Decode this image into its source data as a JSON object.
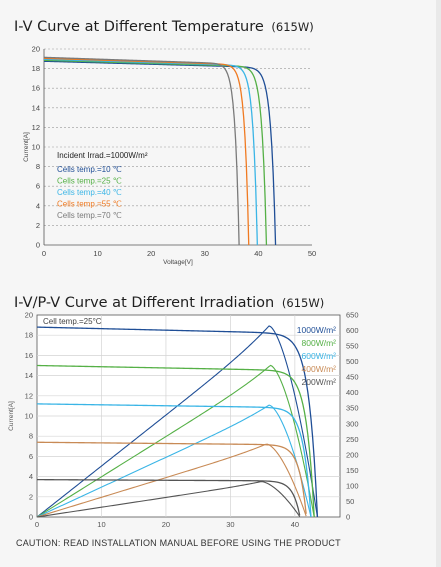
{
  "titles": {
    "chart1_main": "I-V Curve at Different Temperature",
    "chart1_sub": "(615W)",
    "chart2_main": "I-V/P-V Curve at Different Irradiation",
    "chart2_sub": "(615W)"
  },
  "caution": "CAUTION: READ INSTALLATION MANUAL BEFORE USING THE PRODUCT",
  "colors": {
    "grid": "#9a9a9a",
    "axis": "#555555",
    "ref": "#444444"
  },
  "chart_data": [
    {
      "type": "line",
      "title": "I-V Curve at Different Temperature (615W)",
      "xlabel": "Voltage[V]",
      "ylabel": "Current[A]",
      "xlim": [
        0,
        50
      ],
      "ylim": [
        0,
        20
      ],
      "xticks": [
        0,
        10,
        20,
        30,
        40,
        50
      ],
      "yticks": [
        0,
        2,
        4,
        6,
        8,
        10,
        12,
        14,
        16,
        18,
        20
      ],
      "grid": "horizontal dashed",
      "annotations": [
        "Incident Irrad.=1000W/m²"
      ],
      "legend_position": "left-middle",
      "series": [
        {
          "name": "Cells temp.=10 ℃",
          "color": "#1f4e96",
          "isc": 18.75,
          "voc": 43.2,
          "knee": 37.6
        },
        {
          "name": "Cells temp.=25 ℃",
          "color": "#55b046",
          "isc": 18.85,
          "voc": 41.5,
          "knee": 36.2
        },
        {
          "name": "Cells temp.=40 ℃",
          "color": "#3ab5e6",
          "isc": 18.95,
          "voc": 39.8,
          "knee": 34.7
        },
        {
          "name": "Cells temp.=55 ℃",
          "color": "#f07a21",
          "isc": 19.05,
          "voc": 38.2,
          "knee": 33.2
        },
        {
          "name": "Cells temp.=70 ℃",
          "color": "#7a7a7a",
          "isc": 19.15,
          "voc": 36.4,
          "knee": 31.5
        }
      ]
    },
    {
      "type": "line",
      "title": "I-V/P-V Curve at Different Irradiation (615W)",
      "xlabel": "",
      "ylabel": "Current[A]",
      "y2label": "",
      "xlim": [
        0,
        47
      ],
      "ylim": [
        0,
        20
      ],
      "y2lim": [
        0,
        650
      ],
      "xticks": [
        0,
        10,
        20,
        30,
        40
      ],
      "yticks": [
        0,
        2,
        4,
        6,
        8,
        10,
        12,
        14,
        16,
        18,
        20
      ],
      "y2ticks": [
        0,
        50,
        100,
        150,
        200,
        250,
        300,
        350,
        400,
        450,
        500,
        550,
        600,
        650
      ],
      "grid": "vertical and horizontal",
      "annotations": [
        "Cell temp.=25°C"
      ],
      "legend_position": "top-right",
      "series": [
        {
          "name": "1000W/m²",
          "color": "#1f4e96",
          "isc": 18.8,
          "voc": 43.5,
          "pmax": 615,
          "vmp": 36.0
        },
        {
          "name": "800W/m²",
          "color": "#55b046",
          "isc": 15.0,
          "voc": 43.0,
          "pmax": 488,
          "vmp": 36.2
        },
        {
          "name": "600W/m²",
          "color": "#3ab5e6",
          "isc": 11.2,
          "voc": 42.5,
          "pmax": 360,
          "vmp": 36.0
        },
        {
          "name": "400W/m²",
          "color": "#c88a55",
          "isc": 7.4,
          "voc": 41.8,
          "pmax": 235,
          "vmp": 35.6
        },
        {
          "name": "200W/m²",
          "color": "#555555",
          "isc": 3.7,
          "voc": 40.8,
          "pmax": 114,
          "vmp": 34.8
        }
      ]
    }
  ]
}
